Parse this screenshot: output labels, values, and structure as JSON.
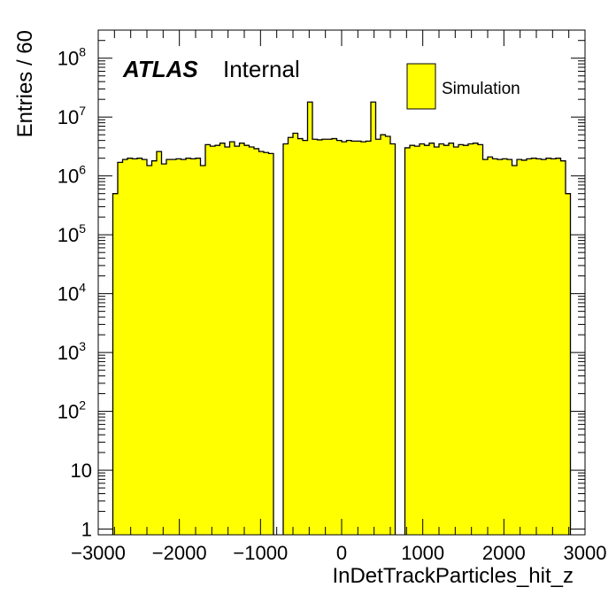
{
  "chart_data": {
    "type": "histogram",
    "xlabel": "InDetTrackParticles_hit_z",
    "ylabel": "Entries / 60",
    "xlim": [
      -3000,
      3000
    ],
    "ylim": [
      0.8,
      300000000
    ],
    "yscale": "log",
    "bin_width": 60,
    "x_tick_labels": [
      "−3000",
      "−2000",
      "−1000",
      "0",
      "1000",
      "2000",
      "3000"
    ],
    "x_tick_values": [
      -3000,
      -2000,
      -1000,
      0,
      1000,
      2000,
      3000
    ],
    "y_ticks": [
      {
        "value": 1,
        "base": "1",
        "exp": ""
      },
      {
        "value": 10,
        "base": "10",
        "exp": ""
      },
      {
        "value": 100,
        "base": "10",
        "exp": "2"
      },
      {
        "value": 1000,
        "base": "10",
        "exp": "3"
      },
      {
        "value": 10000,
        "base": "10",
        "exp": "4"
      },
      {
        "value": 100000,
        "base": "10",
        "exp": "5"
      },
      {
        "value": 1000000,
        "base": "10",
        "exp": "6"
      },
      {
        "value": 10000000,
        "base": "10",
        "exp": "7"
      },
      {
        "value": 100000000,
        "base": "10",
        "exp": "8"
      }
    ],
    "atlas_label": "ATLAS",
    "status_label": "Internal",
    "legend": [
      {
        "name": "Simulation",
        "color": "#ffff00"
      }
    ],
    "fill_color": "#ffff00",
    "line_color": "#000000",
    "bins": [
      [
        -2820,
        500000
      ],
      [
        -2760,
        1700000
      ],
      [
        -2700,
        1900000
      ],
      [
        -2640,
        2000000
      ],
      [
        -2580,
        1950000
      ],
      [
        -2520,
        2000000
      ],
      [
        -2460,
        1900000
      ],
      [
        -2400,
        1500000
      ],
      [
        -2340,
        1800000
      ],
      [
        -2280,
        2600000
      ],
      [
        -2220,
        1600000
      ],
      [
        -2160,
        1900000
      ],
      [
        -2100,
        1900000
      ],
      [
        -2040,
        1950000
      ],
      [
        -1980,
        1900000
      ],
      [
        -1920,
        2000000
      ],
      [
        -1860,
        1950000
      ],
      [
        -1800,
        2000000
      ],
      [
        -1740,
        1500000
      ],
      [
        -1680,
        3400000
      ],
      [
        -1620,
        3200000
      ],
      [
        -1560,
        3300000
      ],
      [
        -1500,
        3600000
      ],
      [
        -1440,
        3100000
      ],
      [
        -1380,
        3800000
      ],
      [
        -1320,
        3200000
      ],
      [
        -1260,
        3600000
      ],
      [
        -1200,
        3300000
      ],
      [
        -1140,
        3100000
      ],
      [
        -1080,
        2900000
      ],
      [
        -1020,
        2600000
      ],
      [
        -960,
        2500000
      ],
      [
        -900,
        2400000
      ],
      [
        -720,
        3500000
      ],
      [
        -660,
        4500000
      ],
      [
        -600,
        5300000
      ],
      [
        -540,
        4300000
      ],
      [
        -480,
        4000000
      ],
      [
        -420,
        18000000
      ],
      [
        -360,
        4200000
      ],
      [
        -300,
        4100000
      ],
      [
        -240,
        4200000
      ],
      [
        -180,
        4200000
      ],
      [
        -120,
        4300000
      ],
      [
        -60,
        4000000
      ],
      [
        0,
        3800000
      ],
      [
        60,
        4000000
      ],
      [
        120,
        3900000
      ],
      [
        180,
        3900000
      ],
      [
        240,
        3800000
      ],
      [
        300,
        3900000
      ],
      [
        360,
        18000000
      ],
      [
        420,
        4200000
      ],
      [
        480,
        5000000
      ],
      [
        540,
        4700000
      ],
      [
        600,
        3500000
      ],
      [
        780,
        3000000
      ],
      [
        840,
        3300000
      ],
      [
        900,
        3200000
      ],
      [
        960,
        3500000
      ],
      [
        1020,
        3300000
      ],
      [
        1080,
        3600000
      ],
      [
        1140,
        3100000
      ],
      [
        1200,
        3500000
      ],
      [
        1260,
        3300000
      ],
      [
        1320,
        3600000
      ],
      [
        1380,
        3100000
      ],
      [
        1440,
        3400000
      ],
      [
        1500,
        3300000
      ],
      [
        1560,
        3500000
      ],
      [
        1620,
        3600000
      ],
      [
        1680,
        3400000
      ],
      [
        1740,
        1900000
      ],
      [
        1800,
        2100000
      ],
      [
        1860,
        1950000
      ],
      [
        1920,
        1900000
      ],
      [
        1980,
        1950000
      ],
      [
        2040,
        1900000
      ],
      [
        2100,
        1500000
      ],
      [
        2160,
        1900000
      ],
      [
        2220,
        1850000
      ],
      [
        2280,
        1950000
      ],
      [
        2340,
        2000000
      ],
      [
        2400,
        1950000
      ],
      [
        2460,
        1900000
      ],
      [
        2520,
        2000000
      ],
      [
        2580,
        1950000
      ],
      [
        2640,
        2000000
      ],
      [
        2700,
        1800000
      ],
      [
        2760,
        500000
      ]
    ]
  }
}
